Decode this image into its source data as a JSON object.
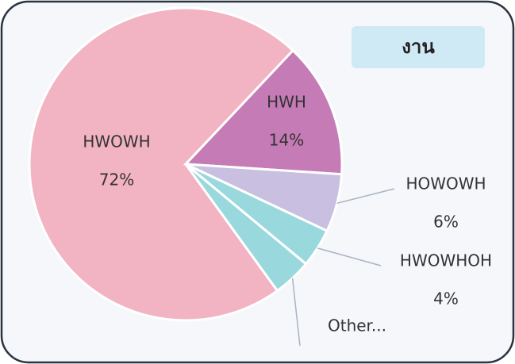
{
  "chart_data": {
    "type": "pie",
    "title": "งาน",
    "categories": [
      "HWOWH",
      "HWH",
      "HOWOWH",
      "HWOWHOH",
      "Other..."
    ],
    "values": [
      72,
      14,
      6,
      4,
      4
    ],
    "value_labels": [
      "72%",
      "14%",
      "6%",
      "4%",
      null
    ],
    "colors": [
      "#f2b3c3",
      "#c57bb5",
      "#c9bfe0",
      "#99d8dc",
      "#99d8dc"
    ]
  }
}
